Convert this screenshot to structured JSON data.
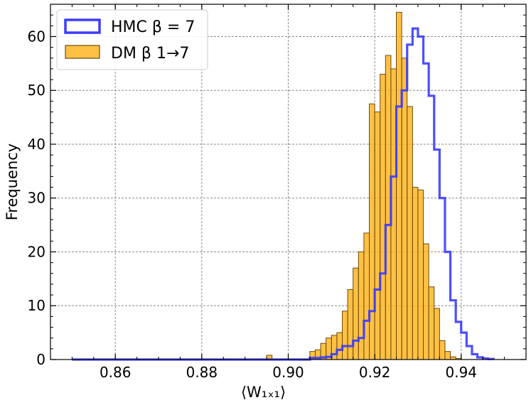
{
  "chart_data": {
    "type": "histogram",
    "xlabel": "⟨W₁ₓ₁⟩",
    "ylabel": "Frequency",
    "xlim": [
      0.845,
      0.955
    ],
    "ylim": [
      0,
      66
    ],
    "xticks": [
      0.86,
      0.88,
      0.9,
      0.92,
      0.94
    ],
    "xtick_labels": [
      "0.86",
      "0.88",
      "0.90",
      "0.92",
      "0.94"
    ],
    "yticks": [
      0,
      10,
      20,
      30,
      40,
      50,
      60
    ],
    "ytick_labels": [
      "0",
      "10",
      "20",
      "30",
      "40",
      "50",
      "60"
    ],
    "grid": true,
    "legend_position": "top-left",
    "bin_width": 0.00125,
    "series": [
      {
        "name": "HMC β = 7",
        "style": "step",
        "color": "#3b3bff",
        "x_start": 0.85,
        "values": [
          0,
          0,
          0,
          0,
          0,
          0,
          0,
          0,
          0,
          0,
          0,
          0,
          0,
          0,
          0,
          0,
          0,
          0,
          0,
          0,
          0,
          0,
          0,
          0,
          0,
          0,
          0,
          0,
          0,
          0,
          0,
          0,
          0,
          0,
          0,
          0,
          0,
          0,
          0,
          0,
          0,
          0,
          0,
          0,
          0.3,
          0.3,
          0.4,
          0.5,
          1.0,
          1.8,
          2.5,
          2.5,
          3.5,
          4.0,
          7.2,
          9.0,
          13.0,
          16.0,
          25.0,
          34.0,
          47.0,
          50.0,
          58.5,
          61.5,
          60.0,
          55.0,
          49.0,
          39.0,
          30.0,
          20.0,
          11.0,
          7.0,
          5.0,
          2.5,
          1.0,
          0.4,
          0.2,
          0.1
        ]
      },
      {
        "name": "DM β 1→7",
        "style": "bar",
        "color": "#ffb31a",
        "edge_color": "#6b4a10",
        "x_start": 0.895,
        "values": [
          0.8,
          0,
          0,
          0,
          0,
          0,
          0,
          0,
          1.5,
          1.8,
          3.0,
          4.0,
          4.5,
          5.0,
          9.0,
          13.0,
          17.0,
          20.0,
          23.5,
          47.5,
          46.0,
          53.0,
          56.5,
          54.0,
          64.5,
          56.0,
          47.0,
          32.0,
          31.5,
          21.5,
          13.5,
          9.5,
          3.5,
          1.5,
          0.5,
          0.2
        ]
      }
    ]
  }
}
